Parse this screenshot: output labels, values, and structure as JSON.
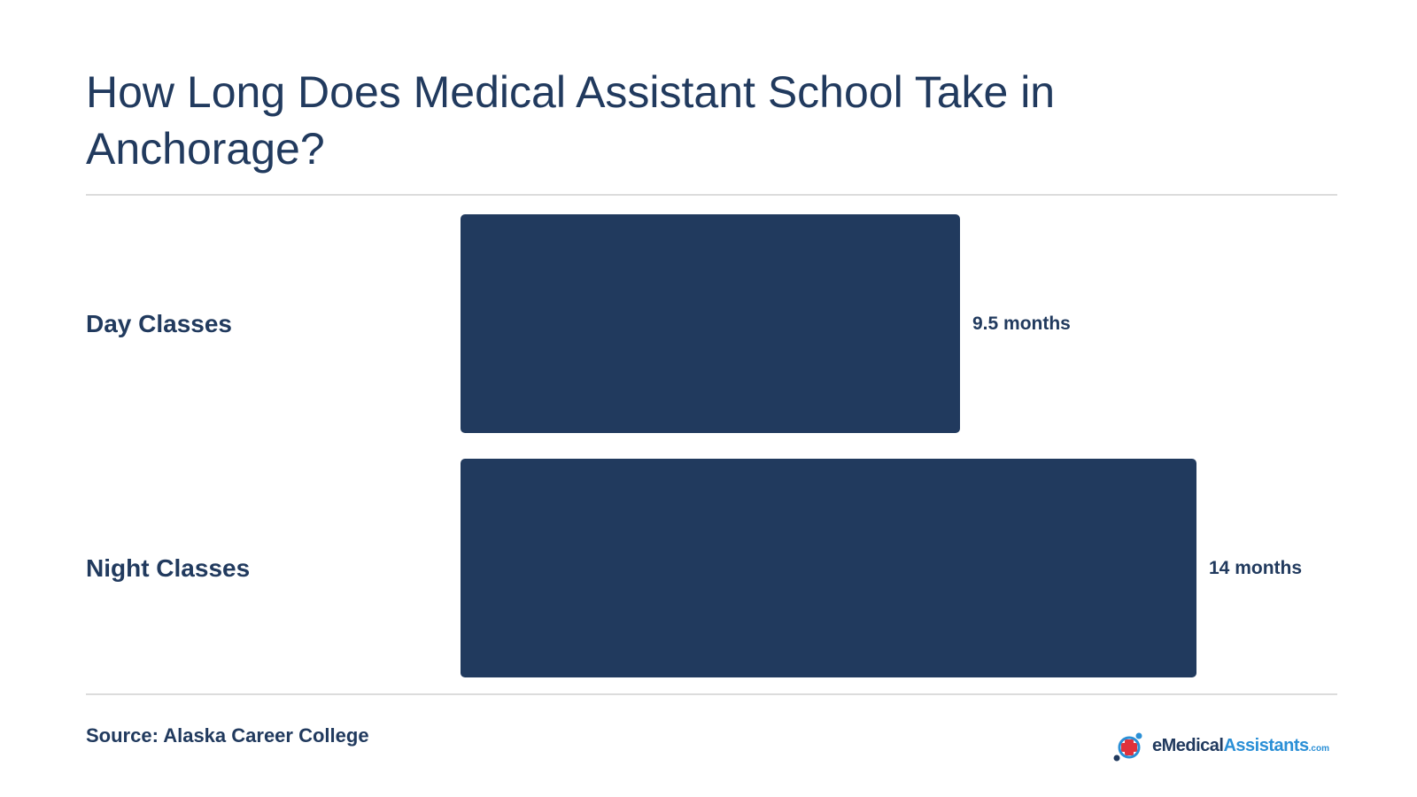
{
  "title": "How Long Does Medical Assistant School Take in Anchorage?",
  "source": "Source: Alaska Career College",
  "logo": {
    "text_main": "eMedical",
    "text_accent": "Assistants",
    "text_suffix": ".com"
  },
  "colors": {
    "bar": "#213a5e",
    "text": "#213a5e",
    "accent": "#2a8fd6",
    "cross": "#e0323c",
    "rule": "#dcdcdc"
  },
  "chart_data": {
    "type": "bar",
    "orientation": "horizontal",
    "categories": [
      "Day Classes",
      "Night Classes"
    ],
    "values": [
      9.5,
      14
    ],
    "value_labels": [
      "9.5 months",
      "14 months"
    ],
    "title": "How Long Does Medical Assistant School Take in Anchorage?",
    "xlabel": "",
    "ylabel": "",
    "xlim": [
      0,
      14
    ],
    "grid": false,
    "legend": "none"
  }
}
